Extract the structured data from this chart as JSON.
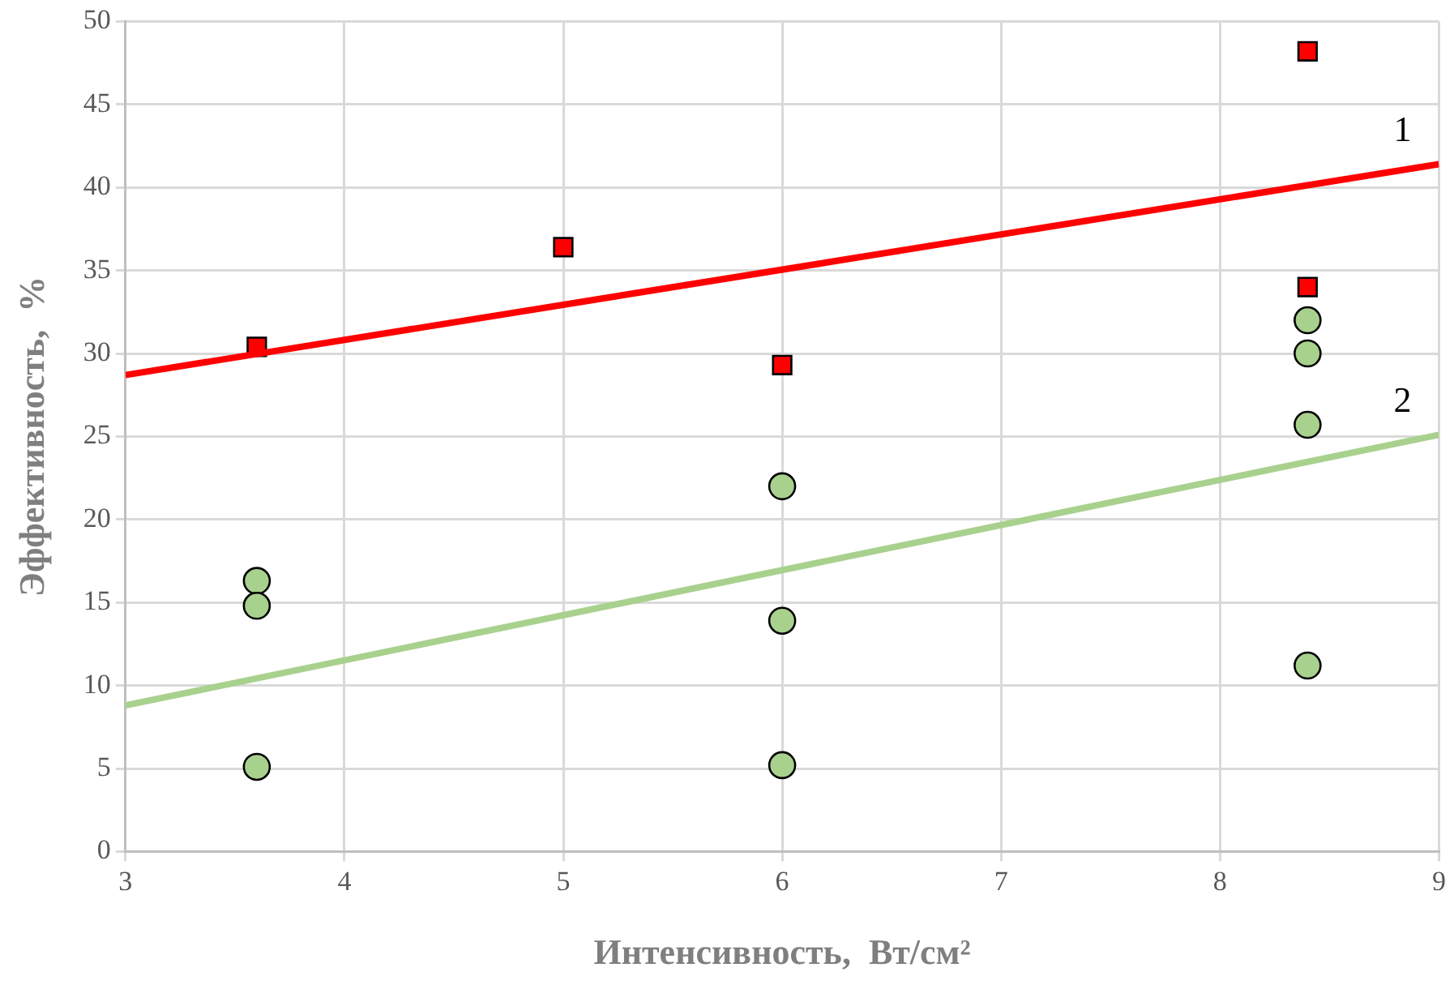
{
  "chart_data": {
    "type": "scatter",
    "xlabel": "Интенсивность,  Вт/см²",
    "ylabel": "Эффективность,  %",
    "xlim": [
      3,
      9
    ],
    "xticks": [
      3,
      4,
      5,
      6,
      7,
      8,
      9
    ],
    "ylim": [
      0,
      50
    ],
    "yticks": [
      0,
      5,
      10,
      15,
      20,
      25,
      30,
      35,
      40,
      45,
      50
    ],
    "grid": true,
    "series": [
      {
        "marker": "square",
        "color": "#ff0000",
        "x": [
          3.6,
          5,
          6,
          8.4,
          8.4
        ],
        "values": [
          30.4,
          36.4,
          29.3,
          48.2,
          34.0
        ]
      },
      {
        "marker": "circle",
        "color": "#a9d18e",
        "x": [
          3.6,
          3.6,
          3.6,
          6,
          6,
          6,
          8.4,
          8.4,
          8.4,
          8.4
        ],
        "values": [
          16.3,
          14.8,
          5.1,
          22.0,
          13.9,
          5.2,
          32.0,
          30.0,
          25.7,
          11.2
        ]
      },
      {
        "type": "line",
        "marker": "none",
        "color": "#ff0000",
        "x": [
          3,
          9
        ],
        "values": [
          28.7,
          41.4
        ]
      },
      {
        "type": "line",
        "marker": "none",
        "color": "#a9d18e",
        "x": [
          3,
          9
        ],
        "values": [
          8.8,
          25.1
        ]
      }
    ],
    "annotations": [
      "1",
      "2"
    ]
  }
}
